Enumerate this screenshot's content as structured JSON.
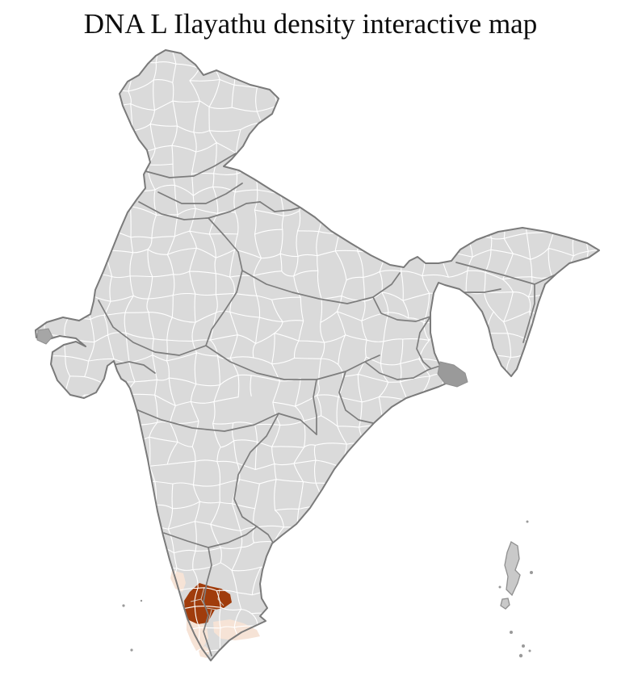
{
  "title": "DNA L Ilayathu density interactive map",
  "map": {
    "colors": {
      "background": "#ffffff",
      "district_fill": "#dadada",
      "district_border": "#ffffff",
      "state_border": "#7d7d7d",
      "outline": "#7a7a7a",
      "high_density": "#a03c0c",
      "low_density": "#f6e3d6",
      "island_fill": "#c9c9c9",
      "island_stroke": "#8f8f8f",
      "delta_dark": "#9a9a9a",
      "title_color": "#0d0d0d"
    }
  }
}
